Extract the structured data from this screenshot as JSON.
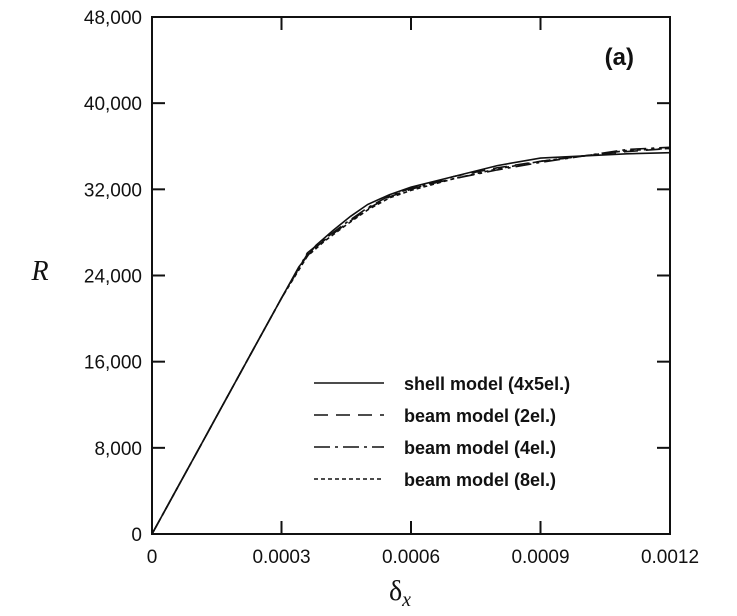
{
  "chart_data": {
    "type": "line",
    "panel_label": "(a)",
    "xlabel": "δ",
    "xlabel_sub": "x",
    "ylabel": "R",
    "xlim": [
      0,
      0.0012
    ],
    "ylim": [
      0,
      48000
    ],
    "x_ticks": [
      0,
      0.0003,
      0.0006,
      0.0009,
      0.0012
    ],
    "x_tick_labels": [
      "0",
      "0.0003",
      "0.0006",
      "0.0009",
      "0.0012"
    ],
    "y_ticks": [
      0,
      8000,
      16000,
      24000,
      32000,
      40000,
      48000
    ],
    "y_tick_labels": [
      "0",
      "8,000",
      "16,000",
      "24,000",
      "32,000",
      "40,000",
      "48,000"
    ],
    "grid": false,
    "legend_position": "lower-right",
    "series": [
      {
        "name": "shell model (4x5el.)",
        "style": "solid",
        "x": [
          0,
          0.0001,
          0.0002,
          0.0003,
          0.00034,
          0.00038,
          0.00042,
          0.00046,
          0.0005,
          0.00055,
          0.0006,
          0.0007,
          0.0008,
          0.0009,
          0.001,
          0.0011,
          0.0012
        ],
        "y": [
          0,
          7300,
          14600,
          21900,
          24800,
          26800,
          28200,
          29500,
          30600,
          31500,
          32200,
          33200,
          34200,
          34900,
          35100,
          35300,
          35400
        ]
      },
      {
        "name": "beam model (2el.)",
        "style": "dashed",
        "x": [
          0,
          0.0001,
          0.0002,
          0.0003,
          0.00036,
          0.0004,
          0.00045,
          0.0005,
          0.00055,
          0.0006,
          0.0007,
          0.0008,
          0.0009,
          0.001,
          0.0011,
          0.0012
        ],
        "y": [
          0,
          7300,
          14600,
          21900,
          26000,
          27300,
          28800,
          30200,
          31300,
          32000,
          33200,
          34000,
          34600,
          35100,
          35500,
          35800
        ]
      },
      {
        "name": "beam model (4el.)",
        "style": "dash-dot",
        "x": [
          0,
          0.0001,
          0.0002,
          0.0003,
          0.00036,
          0.0004,
          0.00045,
          0.0005,
          0.00055,
          0.0006,
          0.0007,
          0.0008,
          0.0009,
          0.001,
          0.0011,
          0.0012
        ],
        "y": [
          0,
          7300,
          14600,
          21900,
          26100,
          27400,
          28900,
          30300,
          31400,
          32100,
          33000,
          33800,
          34500,
          35100,
          35700,
          35900
        ]
      },
      {
        "name": "beam model (8el.)",
        "style": "dotted",
        "x": [
          0,
          0.0001,
          0.0002,
          0.0003,
          0.00036,
          0.0004,
          0.00045,
          0.0005,
          0.00055,
          0.0006,
          0.0007,
          0.0008,
          0.0009,
          0.001,
          0.0011,
          0.0012
        ],
        "y": [
          0,
          7300,
          14600,
          21900,
          25800,
          27200,
          28700,
          30100,
          31200,
          31900,
          33000,
          33900,
          34600,
          35100,
          35600,
          35800
        ]
      }
    ]
  }
}
